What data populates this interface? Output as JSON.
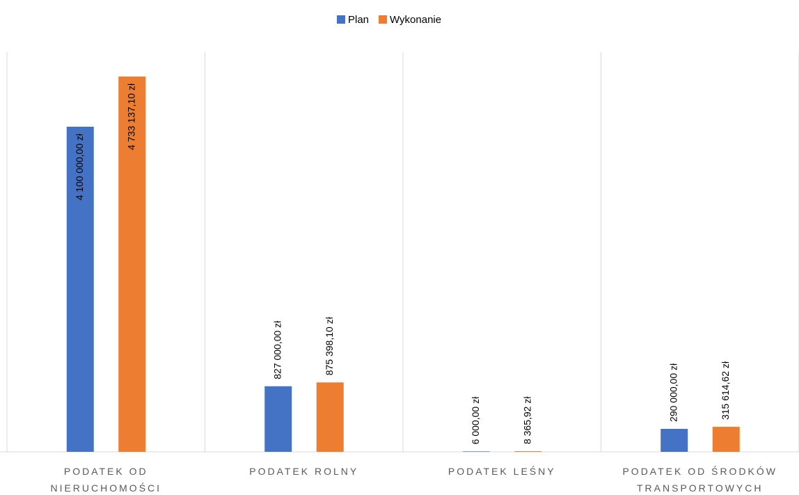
{
  "chart_data": {
    "type": "bar",
    "categories": [
      "PODATEK OD NIERUCHOMOŚCI",
      "PODATEK ROLNY",
      "PODATEK LEŚNY",
      "PODATEK OD ŚRODKÓW TRANSPORTOWYCH"
    ],
    "series": [
      {
        "name": "Plan",
        "color": "#4472c4",
        "values": [
          4100000,
          827000,
          6000,
          290000
        ],
        "value_labels": [
          "4 100 000,00 zł",
          "827 000,00 zł",
          "6 000,00 zł",
          "290 000,00 zł"
        ]
      },
      {
        "name": "Wykonanie",
        "color": "#ed7d31",
        "values": [
          4733137.1,
          875398.1,
          8365.92,
          315614.62
        ],
        "value_labels": [
          "4 733 137,10 zł",
          "875 398,10 zł",
          "8 365,92 zł",
          "315 614,62 zł"
        ]
      }
    ],
    "ylim": [
      0,
      5000000
    ],
    "legend": "top"
  }
}
